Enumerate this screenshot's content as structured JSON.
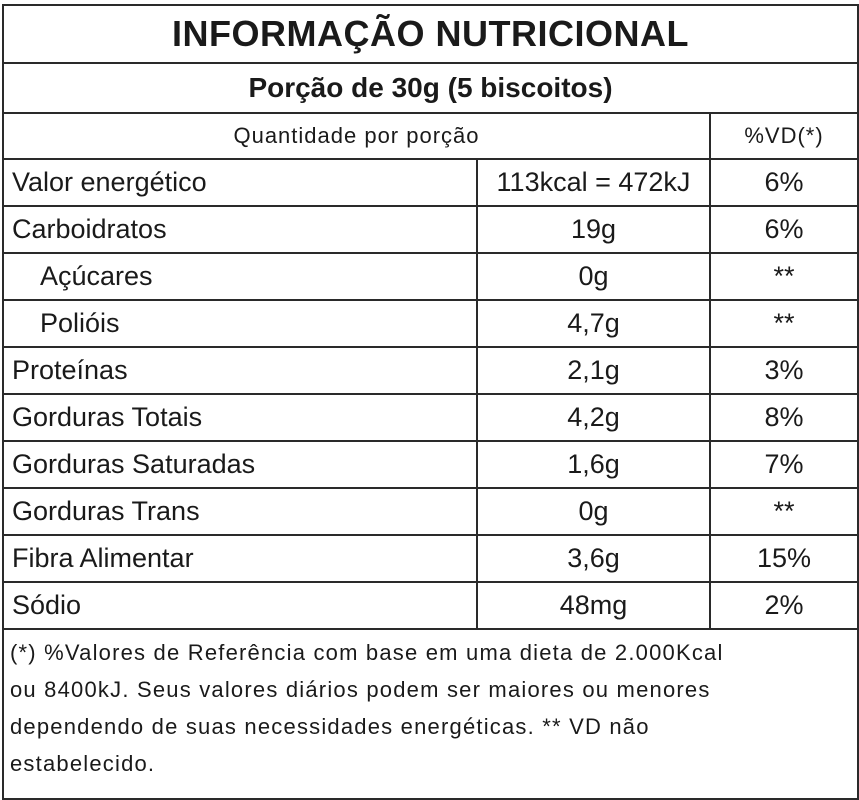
{
  "label": {
    "title": "INFORMAÇÃO NUTRICIONAL",
    "portion": "Porção de 30g (5 biscoitos)",
    "header_quantity": "Quantidade por porção",
    "header_vd": "%VD(*)",
    "rows": [
      {
        "name": "Valor energético",
        "amount": "113kcal = 472kJ",
        "vd": "6%"
      },
      {
        "name": "Carboidratos",
        "amount": "19g",
        "vd": "6%"
      },
      {
        "name": "Açúcares",
        "amount": "0g",
        "vd": "**"
      },
      {
        "name": "Polióis",
        "amount": "4,7g",
        "vd": "**"
      },
      {
        "name": "Proteínas",
        "amount": "2,1g",
        "vd": "3%"
      },
      {
        "name": "Gorduras Totais",
        "amount": "4,2g",
        "vd": "8%"
      },
      {
        "name": "Gorduras Saturadas",
        "amount": "1,6g",
        "vd": "7%"
      },
      {
        "name": "Gorduras Trans",
        "amount": "0g",
        "vd": "**"
      },
      {
        "name": "Fibra Alimentar",
        "amount": "3,6g",
        "vd": "15%"
      },
      {
        "name": "Sódio",
        "amount": "48mg",
        "vd": "2%"
      }
    ],
    "footnote_lines": [
      "(*) %Valores de Referência com base em uma dieta de 2.000Kcal",
      "ou 8400kJ. Seus valores diários podem ser maiores ou menores",
      "dependendo de suas necessidades energéticas. ** VD não",
      "estabelecido."
    ]
  }
}
